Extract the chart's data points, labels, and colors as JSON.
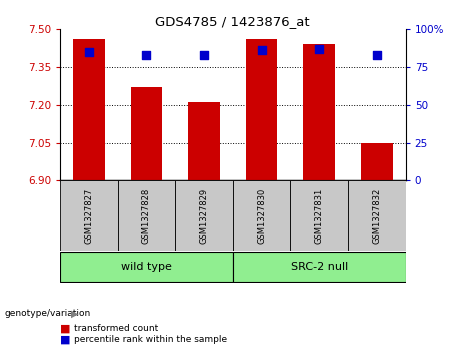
{
  "title": "GDS4785 / 1423876_at",
  "samples": [
    "GSM1327827",
    "GSM1327828",
    "GSM1327829",
    "GSM1327830",
    "GSM1327831",
    "GSM1327832"
  ],
  "transformed_counts": [
    7.46,
    7.27,
    7.21,
    7.46,
    7.44,
    7.05
  ],
  "percentile_ranks": [
    85,
    83,
    83,
    86,
    87,
    83
  ],
  "ylim_left": [
    6.9,
    7.5
  ],
  "yticks_left": [
    6.9,
    7.05,
    7.2,
    7.35,
    7.5
  ],
  "ylim_right": [
    0,
    100
  ],
  "yticks_right": [
    0,
    25,
    50,
    75,
    100
  ],
  "bar_color": "#cc0000",
  "dot_color": "#0000cc",
  "bar_bottom": 6.9,
  "group_labels": [
    "wild type",
    "SRC-2 null"
  ],
  "group_starts": [
    0,
    3
  ],
  "group_ends": [
    2,
    5
  ],
  "genotype_label": "genotype/variation",
  "legend_items": [
    {
      "color": "#cc0000",
      "label": "transformed count"
    },
    {
      "color": "#0000cc",
      "label": "percentile rank within the sample"
    }
  ],
  "bar_width": 0.55,
  "dot_size": 40,
  "tick_color_left": "#cc0000",
  "tick_color_right": "#0000cc",
  "background_xlabel": "#c8c8c8",
  "background_group": "#90ee90"
}
